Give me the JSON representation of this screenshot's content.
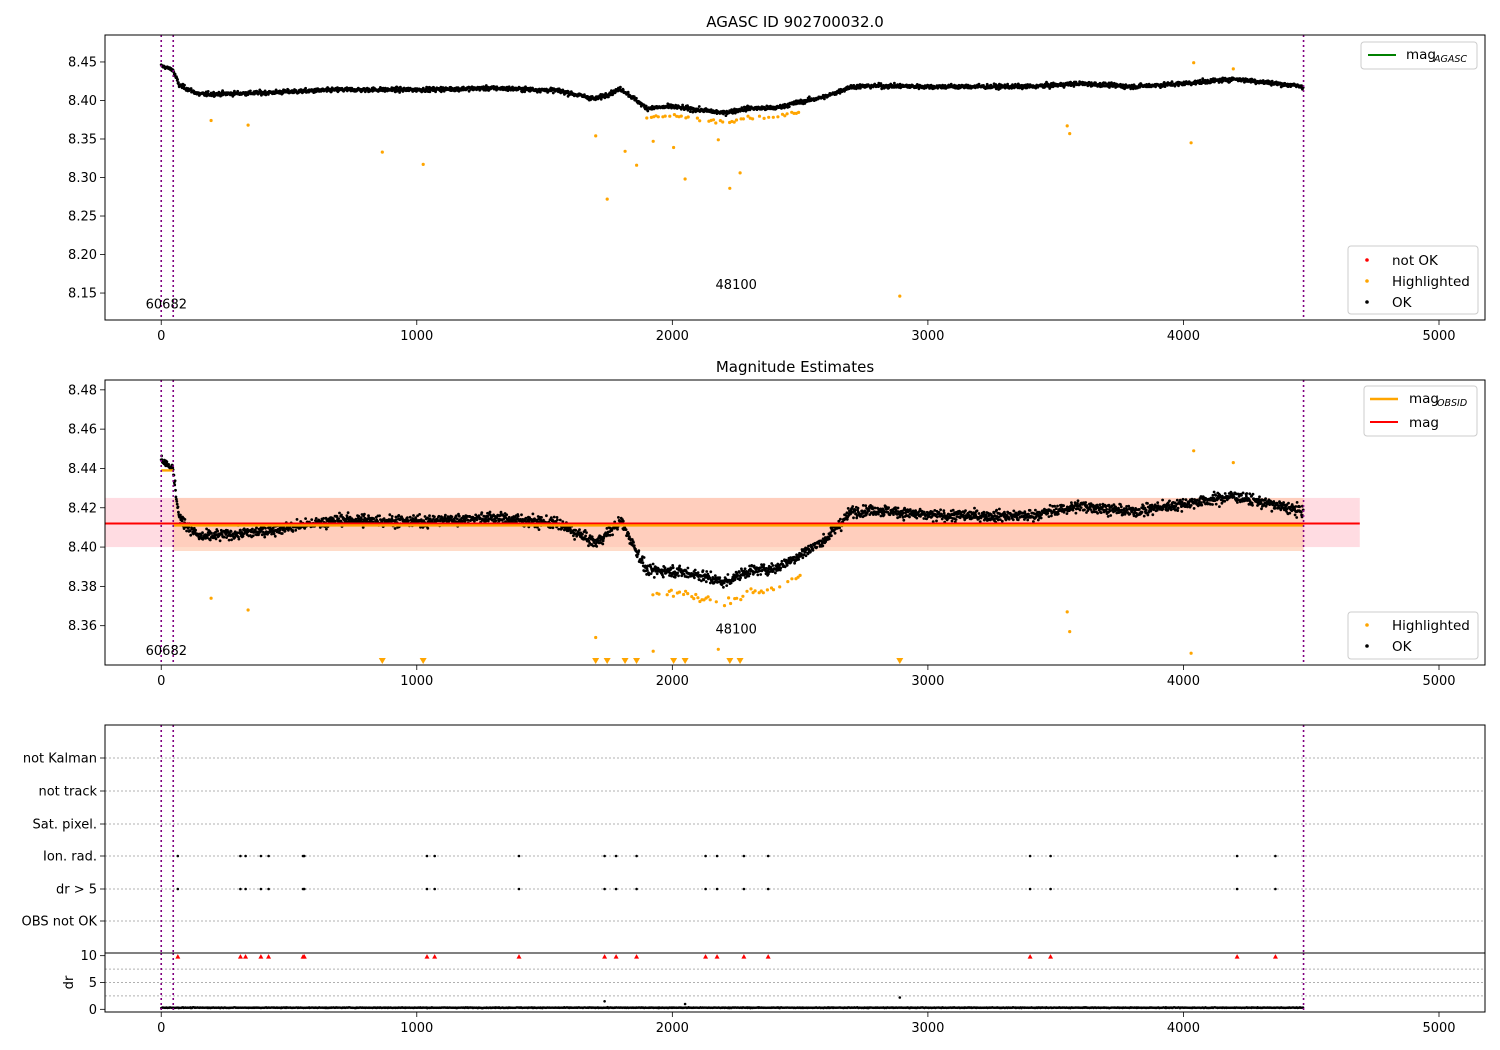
{
  "figure": {
    "colors": {
      "ok": "#000000",
      "highlighted": "#ffa500",
      "not_ok": "#ff0000",
      "mag_agasc": "#008000",
      "mag_obsid": "#ffa500",
      "mag": "#ff0000",
      "vline": "#800080",
      "band_mag": "#ffc0cb",
      "band_obsid": "#ffc5a5"
    }
  },
  "chart_data": [
    {
      "type": "scatter",
      "panel": "top",
      "title": "AGASC ID 902700032.0",
      "xlim": [
        -220,
        5180
      ],
      "ylim": [
        8.115,
        8.485
      ],
      "xticks": [
        0,
        1000,
        2000,
        3000,
        4000,
        5000
      ],
      "yticks": [
        8.15,
        8.2,
        8.25,
        8.3,
        8.35,
        8.4,
        8.45
      ],
      "obsid_boundaries": [
        0,
        47,
        4470
      ],
      "obsid_labels": [
        {
          "text": "60682",
          "x": 20,
          "y": 8.13
        },
        {
          "text": "48100",
          "x": 2250,
          "y": 8.155
        }
      ],
      "lines": [
        {
          "name": "mag_AGASC",
          "value": null
        }
      ],
      "series": [
        {
          "name": "not OK",
          "points": []
        },
        {
          "name": "Highlighted",
          "points": [
            [
              195,
              8.374
            ],
            [
              340,
              8.368
            ],
            [
              865,
              8.333
            ],
            [
              1025,
              8.317
            ],
            [
              1700,
              8.354
            ],
            [
              1745,
              8.272
            ],
            [
              1815,
              8.334
            ],
            [
              1860,
              8.316
            ],
            [
              1925,
              8.347
            ],
            [
              2005,
              8.339
            ],
            [
              2050,
              8.298
            ],
            [
              2180,
              8.349
            ],
            [
              2225,
              8.286
            ],
            [
              2265,
              8.306
            ],
            [
              2890,
              8.146
            ],
            [
              3545,
              8.367
            ],
            [
              3555,
              8.357
            ],
            [
              4030,
              8.345
            ],
            [
              4040,
              8.449
            ],
            [
              4195,
              8.441
            ]
          ]
        },
        {
          "name": "OK",
          "points": []
        }
      ],
      "ok_trend": [
        [
          0,
          8.445
        ],
        [
          45,
          8.44
        ],
        [
          70,
          8.42
        ],
        [
          150,
          8.408
        ],
        [
          400,
          8.41
        ],
        [
          700,
          8.414
        ],
        [
          1000,
          8.414
        ],
        [
          1300,
          8.416
        ],
        [
          1550,
          8.413
        ],
        [
          1700,
          8.402
        ],
        [
          1800,
          8.415
        ],
        [
          1900,
          8.39
        ],
        [
          2000,
          8.392
        ],
        [
          2100,
          8.388
        ],
        [
          2200,
          8.384
        ],
        [
          2300,
          8.39
        ],
        [
          2400,
          8.39
        ],
        [
          2500,
          8.398
        ],
        [
          2600,
          8.405
        ],
        [
          2700,
          8.418
        ],
        [
          2800,
          8.419
        ],
        [
          3000,
          8.418
        ],
        [
          3200,
          8.418
        ],
        [
          3400,
          8.418
        ],
        [
          3600,
          8.422
        ],
        [
          3800,
          8.418
        ],
        [
          4000,
          8.422
        ],
        [
          4200,
          8.428
        ],
        [
          4470,
          8.418
        ]
      ],
      "legend": [
        {
          "label": "mag",
          "sub": "AGASC"
        },
        {
          "label": "not OK"
        },
        {
          "label": "Highlighted"
        },
        {
          "label": "OK"
        }
      ]
    },
    {
      "type": "scatter",
      "panel": "middle",
      "title": "Magnitude Estimates",
      "xlim": [
        -220,
        5180
      ],
      "ylim": [
        8.34,
        8.485
      ],
      "xticks": [
        0,
        1000,
        2000,
        3000,
        4000,
        5000
      ],
      "yticks": [
        8.36,
        8.38,
        8.4,
        8.42,
        8.44,
        8.46,
        8.48
      ],
      "obsid_boundaries": [
        0,
        47,
        4470
      ],
      "obsid_labels": [
        {
          "text": "60682",
          "x": 20,
          "y": 8.345
        },
        {
          "text": "48100",
          "x": 2250,
          "y": 8.356
        }
      ],
      "mag": {
        "value": 8.412,
        "band": [
          8.4,
          8.425
        ],
        "x_range": [
          -220,
          4690
        ]
      },
      "mag_obsid": [
        {
          "x": [
            0,
            47
          ],
          "value": 8.439
        },
        {
          "x": [
            47,
            4470
          ],
          "value": 8.411,
          "band": [
            8.398,
            8.425
          ]
        }
      ],
      "series": [
        {
          "name": "Highlighted",
          "points": [
            [
              195,
              8.374
            ],
            [
              340,
              8.368
            ],
            [
              1700,
              8.354
            ],
            [
              1925,
              8.347
            ],
            [
              2180,
              8.348
            ],
            [
              3545,
              8.367
            ],
            [
              3555,
              8.357
            ],
            [
              4030,
              8.346
            ],
            [
              4040,
              8.449
            ],
            [
              4195,
              8.443
            ]
          ]
        },
        {
          "name": "Highlighted (out of range)",
          "x": [
            865,
            1025,
            1700,
            1745,
            1815,
            1860,
            2005,
            2050,
            2225,
            2265,
            2890
          ]
        },
        {
          "name": "OK",
          "points": []
        }
      ],
      "ok_trend": [
        [
          0,
          8.445
        ],
        [
          45,
          8.44
        ],
        [
          70,
          8.415
        ],
        [
          150,
          8.405
        ],
        [
          400,
          8.408
        ],
        [
          700,
          8.414
        ],
        [
          1000,
          8.413
        ],
        [
          1300,
          8.415
        ],
        [
          1550,
          8.412
        ],
        [
          1700,
          8.402
        ],
        [
          1800,
          8.413
        ],
        [
          1900,
          8.388
        ],
        [
          2000,
          8.388
        ],
        [
          2100,
          8.386
        ],
        [
          2200,
          8.382
        ],
        [
          2300,
          8.388
        ],
        [
          2400,
          8.389
        ],
        [
          2500,
          8.396
        ],
        [
          2600,
          8.404
        ],
        [
          2700,
          8.418
        ],
        [
          2800,
          8.419
        ],
        [
          3000,
          8.416
        ],
        [
          3200,
          8.416
        ],
        [
          3400,
          8.416
        ],
        [
          3600,
          8.421
        ],
        [
          3800,
          8.418
        ],
        [
          4000,
          8.422
        ],
        [
          4200,
          8.426
        ],
        [
          4470,
          8.418
        ]
      ],
      "legend": [
        {
          "label": "mag",
          "sub": "OBSID"
        },
        {
          "label": "mag"
        },
        {
          "label": "Highlighted"
        },
        {
          "label": "OK"
        }
      ]
    },
    {
      "type": "scatter",
      "panel": "flags",
      "xlim": [
        -220,
        5180
      ],
      "categories": [
        "not Kalman",
        "not track",
        "Sat. pixel.",
        "Ion. rad.",
        "dr > 5",
        "OBS not OK"
      ],
      "obsid_boundaries": [
        0,
        47,
        4470
      ],
      "flag_points": {
        "Ion. rad.": [
          65,
          310,
          330,
          390,
          420,
          555,
          560,
          1040,
          1070,
          1400,
          1735,
          1780,
          1860,
          2130,
          2175,
          2280,
          2375,
          3400,
          3480,
          4210,
          4360
        ],
        "dr > 5": [
          65,
          310,
          330,
          390,
          420,
          555,
          560,
          1040,
          1070,
          1400,
          1735,
          1780,
          1860,
          2130,
          2175,
          2280,
          2375,
          3400,
          3480,
          4210,
          4360
        ]
      }
    },
    {
      "type": "scatter",
      "panel": "dr",
      "ylabel": "dr",
      "xlim": [
        -220,
        5180
      ],
      "ylim": [
        -0.5,
        10.5
      ],
      "xticks": [
        0,
        1000,
        2000,
        3000,
        4000,
        5000
      ],
      "yticks": [
        0,
        5,
        10
      ],
      "obsid_boundaries": [
        0,
        47,
        4470
      ],
      "clipped_markers": [
        65,
        310,
        330,
        390,
        420,
        555,
        560,
        1040,
        1070,
        1400,
        1735,
        1780,
        1860,
        2130,
        2175,
        2280,
        2375,
        3400,
        3480,
        4210,
        4360
      ],
      "outliers": [
        [
          1735,
          1.5
        ],
        [
          2890,
          2.2
        ],
        [
          2050,
          1.0
        ]
      ]
    }
  ]
}
